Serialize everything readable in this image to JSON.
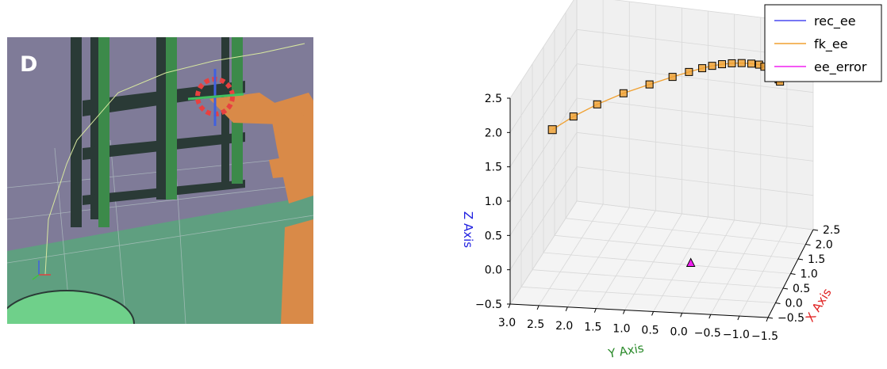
{
  "panel": {
    "label": "D"
  },
  "scene_colors": {
    "background": "#7f7b98",
    "floor": "#5f9f80",
    "pillar": "#3c8a4a",
    "robot": "#d98a48",
    "dish": "#6fd08a"
  },
  "chart_data": {
    "type": "line3d",
    "xlabel": "X Axis",
    "ylabel": "Y Axis",
    "zlabel": "Z Axis",
    "axis_colors": {
      "x": "#e02020",
      "y": "#2a8a2a",
      "z": "#2020e0"
    },
    "xlim": [
      -0.5,
      2.5
    ],
    "ylim": [
      -1.5,
      3.0
    ],
    "zlim": [
      -0.5,
      2.5
    ],
    "x_ticks": [
      "−0.5",
      "0.0",
      "0.5",
      "1.0",
      "1.5",
      "2.0",
      "2.5"
    ],
    "y_ticks": [
      "3.0",
      "2.5",
      "2.0",
      "1.5",
      "1.0",
      "0.5",
      "0.0",
      "−0.5",
      "−1.0",
      "−1.5"
    ],
    "z_ticks": [
      "−0.5",
      "0.0",
      "0.5",
      "1.0",
      "1.5",
      "2.0",
      "2.5"
    ],
    "grid": true,
    "legend": {
      "placement": "top-right",
      "entries": [
        {
          "label": "rec_ee",
          "color": "#4a4af0"
        },
        {
          "label": "fk_ee",
          "color": "#f0a030"
        },
        {
          "label": "ee_error",
          "color": "#f020f0"
        }
      ]
    },
    "series": [
      {
        "name": "fk_ee",
        "color": "#f0a030",
        "points": [
          [
            0.0,
            2.45,
            1.82
          ],
          [
            0.2,
            2.15,
            1.93
          ],
          [
            0.4,
            1.8,
            2.03
          ],
          [
            0.6,
            1.4,
            2.12
          ],
          [
            0.8,
            1.0,
            2.18
          ],
          [
            1.0,
            0.65,
            2.22
          ],
          [
            1.15,
            0.4,
            2.24
          ],
          [
            1.28,
            0.2,
            2.25
          ],
          [
            1.38,
            0.05,
            2.25
          ],
          [
            1.48,
            -0.1,
            2.24
          ],
          [
            1.58,
            -0.25,
            2.22
          ],
          [
            1.68,
            -0.4,
            2.19
          ],
          [
            1.78,
            -0.55,
            2.15
          ],
          [
            1.86,
            -0.67,
            2.11
          ],
          [
            1.92,
            -0.75,
            2.06
          ],
          [
            1.97,
            -0.82,
            2.01
          ],
          [
            2.01,
            -0.87,
            1.96
          ],
          [
            2.05,
            -0.91,
            1.91
          ],
          [
            2.08,
            -0.94,
            1.86
          ],
          [
            2.11,
            -0.96,
            1.81
          ],
          [
            2.13,
            -0.98,
            1.77
          ]
        ]
      },
      {
        "name": "ee_error",
        "color": "#f020f0",
        "points": [
          [
            0.0,
            0.0,
            0.0
          ]
        ]
      }
    ]
  }
}
